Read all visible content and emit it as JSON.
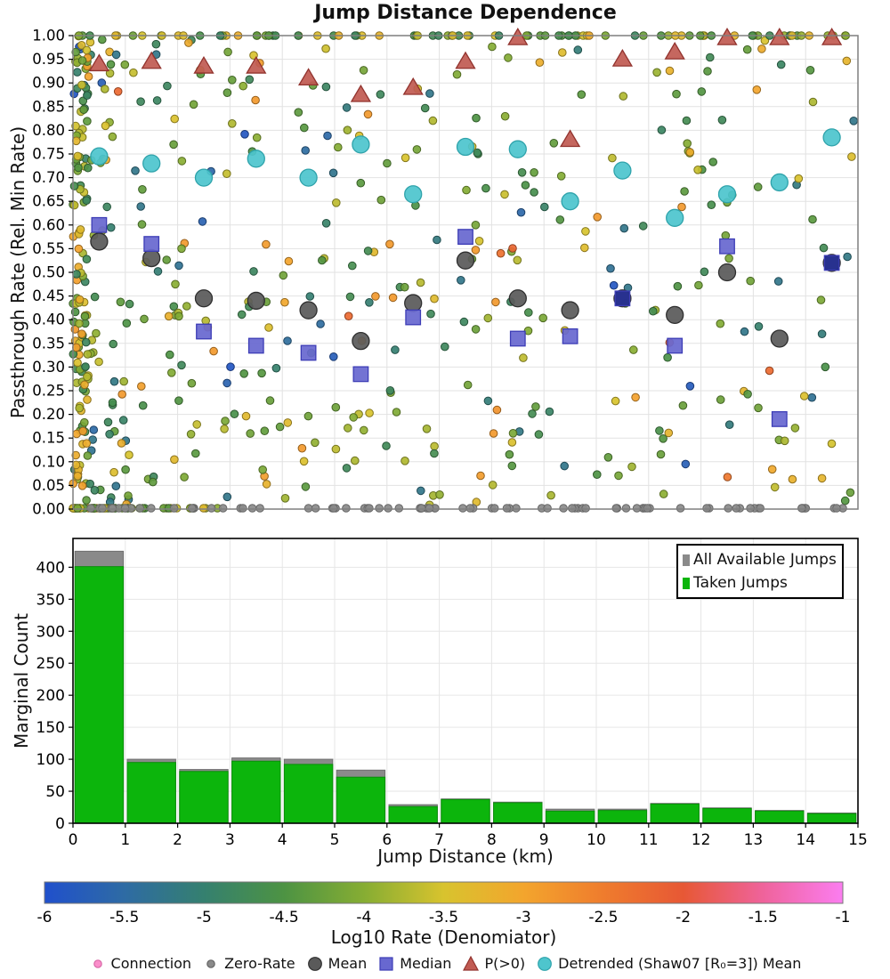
{
  "figure": {
    "title": "Jump Distance Dependence",
    "background": "#ffffff"
  },
  "scatter_panel": {
    "ylabel": "Passthrough Rate (Rel. Min Rate)",
    "ytick_min": 0.0,
    "ytick_max": 1.0,
    "ytick_step": 0.05
  },
  "hist_panel": {
    "ylabel": "Marginal Count",
    "xlabel": "Jump Distance (km)",
    "ytick_step": 50,
    "xtick_labels": [
      "0",
      "1",
      "2",
      "3",
      "4",
      "5",
      "6",
      "7",
      "8",
      "9",
      "10",
      "11",
      "12",
      "13",
      "14",
      "15"
    ],
    "legend": [
      {
        "label": "All Available Jumps",
        "color": "#8a8a8a"
      },
      {
        "label": "Taken Jumps",
        "color": "#0cb50c"
      }
    ]
  },
  "colorbar": {
    "label": "Log10 Rate (Denomiator)",
    "min": -6,
    "max": -1,
    "tick_labels": [
      "-6",
      "-5.5",
      "-5",
      "-4.5",
      "-4",
      "-3.5",
      "-3",
      "-2.5",
      "-2",
      "-1.5",
      "-1"
    ],
    "stops": [
      {
        "t": 0.0,
        "c": "#2050cc"
      },
      {
        "t": 0.1,
        "c": "#2e6ba4"
      },
      {
        "t": 0.2,
        "c": "#35806f"
      },
      {
        "t": 0.3,
        "c": "#4d9343"
      },
      {
        "t": 0.4,
        "c": "#86ad33"
      },
      {
        "t": 0.5,
        "c": "#d8c32e"
      },
      {
        "t": 0.6,
        "c": "#f3a52d"
      },
      {
        "t": 0.7,
        "c": "#ef7c2d"
      },
      {
        "t": 0.8,
        "c": "#e75835"
      },
      {
        "t": 0.9,
        "c": "#ef639b"
      },
      {
        "t": 1.0,
        "c": "#fb7df0"
      }
    ]
  },
  "bottom_legend": [
    {
      "label": "Connection",
      "marker": "dot",
      "fill": "#fb8ecb",
      "stroke": "#d86aa8"
    },
    {
      "label": "Zero-Rate",
      "marker": "dot",
      "fill": "#8a8a8a",
      "stroke": "#666666"
    },
    {
      "label": "Mean",
      "marker": "circle",
      "fill": "#5a5a5a",
      "stroke": "#2f2f2f"
    },
    {
      "label": "Median",
      "marker": "square",
      "fill": "#6868d0",
      "stroke": "#3d3db6"
    },
    {
      "label": "P(>0)",
      "marker": "triangle",
      "fill": "#c15b53",
      "stroke": "#92332e"
    },
    {
      "label": "Detrended (Shaw07 [R₀=3]) Mean",
      "marker": "circle",
      "fill": "#4ec5cd",
      "stroke": "#2fa3ab"
    }
  ],
  "chart_data": [
    {
      "type": "scatter",
      "title": "Jump Distance Dependence",
      "xlabel": "Jump Distance (km)",
      "ylabel": "Passthrough Rate (Rel. Min Rate)",
      "xlim": [
        0,
        15
      ],
      "ylim": [
        0,
        1
      ],
      "grid": true,
      "bin_centers": [
        0.5,
        1.5,
        2.5,
        3.5,
        4.5,
        5.5,
        6.5,
        7.5,
        8.5,
        9.5,
        10.5,
        11.5,
        12.5,
        13.5,
        14.5
      ],
      "series": [
        {
          "name": "Mean",
          "marker": "circle",
          "fill": "#5a5a5a",
          "stroke": "#2f2f2f",
          "size": 19,
          "values": [
            0.565,
            0.53,
            0.445,
            0.44,
            0.42,
            0.355,
            0.435,
            0.525,
            0.445,
            0.42,
            0.445,
            0.41,
            0.5,
            0.36,
            0.52
          ]
        },
        {
          "name": "Median",
          "marker": "square",
          "fill": "#6868d0",
          "stroke": "#3d3db6",
          "size": 16.5,
          "values": [
            0.6,
            0.56,
            0.375,
            0.345,
            0.33,
            0.285,
            0.405,
            0.575,
            0.36,
            0.365,
            0.445,
            0.345,
            0.555,
            0.19,
            0.52
          ],
          "fill_overrides": {
            "10": "#232d92",
            "14": "#232d92"
          }
        },
        {
          "name": "P(>0)",
          "marker": "triangle",
          "fill": "#c15b53",
          "stroke": "#92332e",
          "size": 21,
          "values": [
            0.94,
            0.945,
            0.935,
            0.935,
            0.91,
            0.875,
            0.89,
            0.945,
            0.995,
            0.78,
            0.95,
            0.965,
            0.995,
            0.995,
            0.995
          ]
        },
        {
          "name": "Detrended (Shaw07 [R₀=3]) Mean",
          "marker": "circle",
          "fill": "#4ec5cd",
          "stroke": "#2fa3ab",
          "size": 19,
          "values": [
            0.745,
            0.73,
            0.7,
            0.74,
            0.7,
            0.77,
            0.665,
            0.765,
            0.76,
            0.65,
            0.715,
            0.615,
            0.665,
            0.69,
            0.785
          ]
        }
      ],
      "point_cloud": {
        "seed": 11,
        "point_radius": 4.3,
        "colored_by": "Log10 Rate (Denomiator)",
        "groups": [
          {
            "name": "interior",
            "kind": "interior",
            "n": 430
          },
          {
            "name": "left-strip",
            "kind": "left",
            "n": 90
          },
          {
            "name": "top-row",
            "kind": "top",
            "n": 88
          },
          {
            "name": "bottom-colored",
            "kind": "bottomc",
            "n": 55
          },
          {
            "name": "zero-rate",
            "kind": "zero",
            "n": 85,
            "fill": "#8a8a8a",
            "stroke": "#666666"
          }
        ]
      }
    },
    {
      "type": "bar",
      "xlabel": "Jump Distance (km)",
      "ylabel": "Marginal Count",
      "bin_edges": [
        0,
        1,
        2,
        3,
        4,
        5,
        6,
        7,
        8,
        9,
        10,
        11,
        12,
        13,
        14,
        15
      ],
      "ylim": [
        0,
        445
      ],
      "yticks": [
        0,
        50,
        100,
        150,
        200,
        250,
        300,
        350,
        400
      ],
      "legend_position": "top-right",
      "series": [
        {
          "name": "All Available Jumps",
          "color": "#8a8a8a",
          "stroke": "#6f6f6f",
          "values": [
            425,
            100,
            84,
            102,
            100,
            83,
            29,
            38,
            33,
            22,
            22,
            31,
            24,
            20,
            16
          ]
        },
        {
          "name": "Taken Jumps",
          "color": "#0cb50c",
          "stroke": "#0a8f0a",
          "values": [
            401,
            95,
            81,
            97,
            92,
            72,
            26,
            37,
            32,
            19,
            20,
            30,
            23,
            19,
            15
          ]
        }
      ]
    }
  ]
}
